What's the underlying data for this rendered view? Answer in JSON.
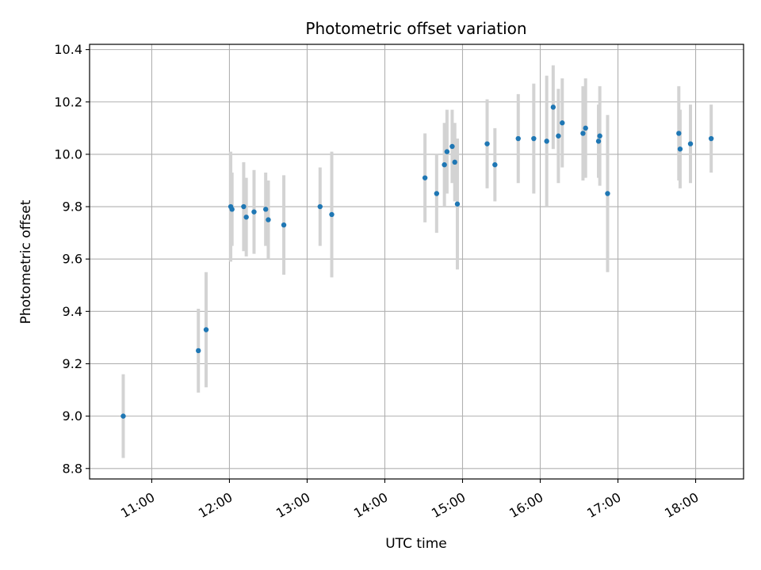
{
  "chart_data": {
    "type": "scatter",
    "title": "Photometric offset variation",
    "xlabel": "UTC time",
    "ylabel": "Photometric offset",
    "xlim": [
      "10:12",
      "18:37"
    ],
    "ylim": [
      8.76,
      10.42
    ],
    "xticks": [
      "11:00",
      "12:00",
      "13:00",
      "14:00",
      "15:00",
      "16:00",
      "17:00",
      "18:00"
    ],
    "yticks": [
      8.8,
      9.0,
      9.2,
      9.4,
      9.6,
      9.8,
      10.0,
      10.2,
      10.4
    ],
    "grid": true,
    "colors": {
      "marker": "#1f77b4",
      "errorbar": "#d3d3d3",
      "grid": "#b0b0b0"
    },
    "series": [
      {
        "points": [
          {
            "x": "10:38",
            "y": 9.0,
            "yerr": 0.16
          },
          {
            "x": "11:36",
            "y": 9.25,
            "yerr": 0.16
          },
          {
            "x": "11:42",
            "y": 9.33,
            "yerr": 0.22
          },
          {
            "x": "12:01",
            "y": 9.8,
            "yerr": 0.21
          },
          {
            "x": "12:02",
            "y": 9.79,
            "yerr": 0.14
          },
          {
            "x": "12:11",
            "y": 9.8,
            "yerr": 0.17
          },
          {
            "x": "12:13",
            "y": 9.76,
            "yerr": 0.15
          },
          {
            "x": "12:19",
            "y": 9.78,
            "yerr": 0.16
          },
          {
            "x": "12:28",
            "y": 9.79,
            "yerr": 0.14
          },
          {
            "x": "12:30",
            "y": 9.75,
            "yerr": 0.15
          },
          {
            "x": "12:42",
            "y": 9.73,
            "yerr": 0.19
          },
          {
            "x": "13:10",
            "y": 9.8,
            "yerr": 0.15
          },
          {
            "x": "13:19",
            "y": 9.77,
            "yerr": 0.24
          },
          {
            "x": "14:31",
            "y": 9.91,
            "yerr": 0.17
          },
          {
            "x": "14:40",
            "y": 9.85,
            "yerr": 0.15
          },
          {
            "x": "14:46",
            "y": 9.96,
            "yerr": 0.16
          },
          {
            "x": "14:48",
            "y": 10.01,
            "yerr": 0.16
          },
          {
            "x": "14:52",
            "y": 10.03,
            "yerr": 0.14
          },
          {
            "x": "14:54",
            "y": 9.97,
            "yerr": 0.15
          },
          {
            "x": "14:56",
            "y": 9.81,
            "yerr": 0.25
          },
          {
            "x": "15:19",
            "y": 10.04,
            "yerr": 0.17
          },
          {
            "x": "15:25",
            "y": 9.96,
            "yerr": 0.14
          },
          {
            "x": "15:43",
            "y": 10.06,
            "yerr": 0.17
          },
          {
            "x": "15:55",
            "y": 10.06,
            "yerr": 0.21
          },
          {
            "x": "16:05",
            "y": 10.05,
            "yerr": 0.25
          },
          {
            "x": "16:10",
            "y": 10.18,
            "yerr": 0.16
          },
          {
            "x": "16:14",
            "y": 10.07,
            "yerr": 0.18
          },
          {
            "x": "16:17",
            "y": 10.12,
            "yerr": 0.17
          },
          {
            "x": "16:33",
            "y": 10.08,
            "yerr": 0.18
          },
          {
            "x": "16:35",
            "y": 10.1,
            "yerr": 0.19
          },
          {
            "x": "16:45",
            "y": 10.05,
            "yerr": 0.14
          },
          {
            "x": "16:46",
            "y": 10.07,
            "yerr": 0.19
          },
          {
            "x": "16:52",
            "y": 9.85,
            "yerr": 0.3
          },
          {
            "x": "17:47",
            "y": 10.08,
            "yerr": 0.18
          },
          {
            "x": "17:48",
            "y": 10.02,
            "yerr": 0.15
          },
          {
            "x": "17:56",
            "y": 10.04,
            "yerr": 0.15
          },
          {
            "x": "18:12",
            "y": 10.06,
            "yerr": 0.13
          }
        ]
      }
    ]
  }
}
